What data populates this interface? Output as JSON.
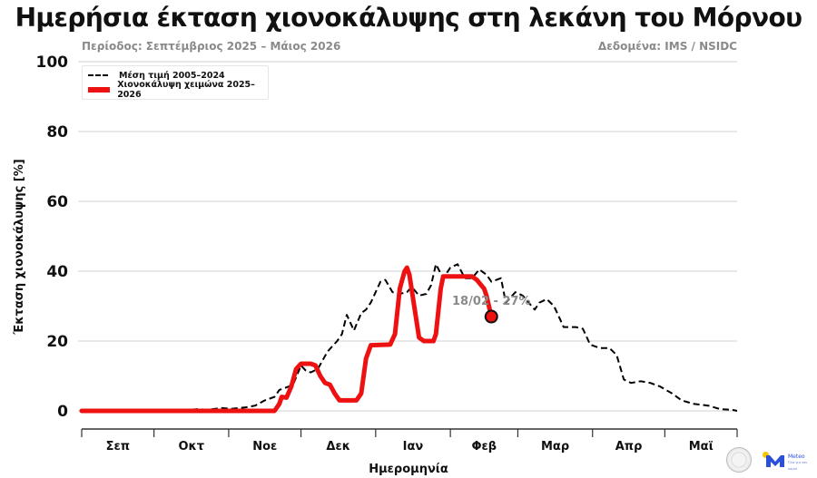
{
  "header": {
    "title": "Ημερήσια έκταση χιονοκάλυψης στη λεκάνη του Μόρνου",
    "period": "Περίοδος: Σεπτέμβριος 2025 – Μάιος 2026",
    "source": "Δεδομένα: IMS / NSIDC"
  },
  "legend": {
    "mean_label": "Μέση τιμή 2005–2024",
    "current_label": "Χιονοκάλυψη χειμώνα 2025–2026"
  },
  "annotation": {
    "label": "18/02 - 27%",
    "date": "18/02",
    "value": 27
  },
  "logos": {
    "meteo": "Meteo",
    "meteo_sub": "Όλα για τον καιρό"
  },
  "colors": {
    "current": "#ee1111",
    "mean": "#000000",
    "grid": "#d0d0d0",
    "annotation_text": "#8a8a8a"
  },
  "chart_data": {
    "type": "line",
    "title": "Ημερήσια έκταση χιονοκάλυψης στη λεκάνη του Μόρνου",
    "subtitle_left": "Περίοδος: Σεπτέμβριος 2025 – Μάιος 2026",
    "subtitle_right": "Δεδομένα: IMS / NSIDC",
    "xlabel": "Ημερομηνία",
    "ylabel": "Έκταση χιονοκάλυψης [%]",
    "ylim": [
      0,
      100
    ],
    "yticks": [
      0,
      20,
      40,
      60,
      80,
      100
    ],
    "xlim_days": [
      0,
      272
    ],
    "x_unit": "days since 1 Sep 2025",
    "month_ticks_days": [
      0,
      30,
      61,
      91,
      122,
      153,
      181,
      212,
      242,
      272
    ],
    "month_labels": [
      "Σεπ",
      "Οκτ",
      "Νοε",
      "Δεκ",
      "Ιαν",
      "Φεβ",
      "Μαρ",
      "Απρ",
      "Μαϊ"
    ],
    "grid": "horizontal",
    "legend_position": "upper left",
    "series": [
      {
        "name": "Μέση τιμή 2005–2024",
        "style": "dashed",
        "color": "#000000",
        "points": [
          [
            0,
            0
          ],
          [
            40,
            0
          ],
          [
            48,
            0.5
          ],
          [
            52,
            0.3
          ],
          [
            58,
            0.8
          ],
          [
            62,
            0.6
          ],
          [
            68,
            1
          ],
          [
            72,
            1.5
          ],
          [
            76,
            3
          ],
          [
            80,
            4
          ],
          [
            82,
            6
          ],
          [
            86,
            7
          ],
          [
            88,
            8
          ],
          [
            91,
            13
          ],
          [
            93,
            11.5
          ],
          [
            95,
            11
          ],
          [
            98,
            12
          ],
          [
            102,
            17
          ],
          [
            106,
            20
          ],
          [
            108,
            22
          ],
          [
            110,
            27.5
          ],
          [
            113,
            23
          ],
          [
            116,
            28
          ],
          [
            118,
            29
          ],
          [
            120,
            31
          ],
          [
            122,
            34
          ],
          [
            124,
            37
          ],
          [
            126,
            37.5
          ],
          [
            129,
            34
          ],
          [
            132,
            33.5
          ],
          [
            135,
            34
          ],
          [
            137,
            35.5
          ],
          [
            140,
            33
          ],
          [
            143,
            33.5
          ],
          [
            145,
            36
          ],
          [
            147,
            42
          ],
          [
            150,
            38
          ],
          [
            153,
            41
          ],
          [
            156,
            42
          ],
          [
            159,
            38
          ],
          [
            162,
            38
          ],
          [
            165,
            40.5
          ],
          [
            168,
            39
          ],
          [
            170,
            37
          ],
          [
            174,
            38
          ],
          [
            176,
            31
          ],
          [
            180,
            34
          ],
          [
            183,
            33
          ],
          [
            188,
            29
          ],
          [
            190,
            31
          ],
          [
            193,
            32
          ],
          [
            196,
            30
          ],
          [
            200,
            24
          ],
          [
            205,
            24
          ],
          [
            208,
            23.5
          ],
          [
            211,
            19
          ],
          [
            215,
            18
          ],
          [
            219,
            18
          ],
          [
            222,
            16
          ],
          [
            225,
            9
          ],
          [
            228,
            8
          ],
          [
            232,
            8.5
          ],
          [
            236,
            8
          ],
          [
            240,
            7
          ],
          [
            245,
            5
          ],
          [
            249,
            3
          ],
          [
            254,
            2
          ],
          [
            260,
            1.5
          ],
          [
            265,
            0.5
          ],
          [
            270,
            0.3
          ],
          [
            272,
            0
          ]
        ]
      },
      {
        "name": "Χιονοκάλυψη χειμώνα 2025–2026",
        "style": "solid",
        "color": "#ee1111",
        "points": [
          [
            0,
            0
          ],
          [
            80,
            0
          ],
          [
            82,
            2
          ],
          [
            83,
            4
          ],
          [
            85,
            3.8
          ],
          [
            87,
            7
          ],
          [
            89,
            12
          ],
          [
            91,
            13.5
          ],
          [
            95,
            13.5
          ],
          [
            97,
            13
          ],
          [
            99,
            10
          ],
          [
            101,
            8
          ],
          [
            103,
            7.5
          ],
          [
            105,
            5
          ],
          [
            107,
            3
          ],
          [
            114,
            3
          ],
          [
            116,
            5
          ],
          [
            118,
            15
          ],
          [
            120,
            18.8
          ],
          [
            128,
            19
          ],
          [
            130,
            22
          ],
          [
            132,
            35
          ],
          [
            134,
            40
          ],
          [
            135,
            41
          ],
          [
            136,
            39
          ],
          [
            138,
            30
          ],
          [
            140,
            21
          ],
          [
            142,
            20
          ],
          [
            146,
            20
          ],
          [
            147,
            22
          ],
          [
            149,
            35
          ],
          [
            150,
            38.5
          ],
          [
            162,
            38.5
          ],
          [
            164,
            37.5
          ],
          [
            167,
            35
          ],
          [
            168,
            33
          ],
          [
            169,
            30
          ],
          [
            170,
            27
          ]
        ]
      }
    ],
    "highlight_point": {
      "day": 170,
      "value": 27,
      "label": "18/02 - 27%"
    }
  }
}
